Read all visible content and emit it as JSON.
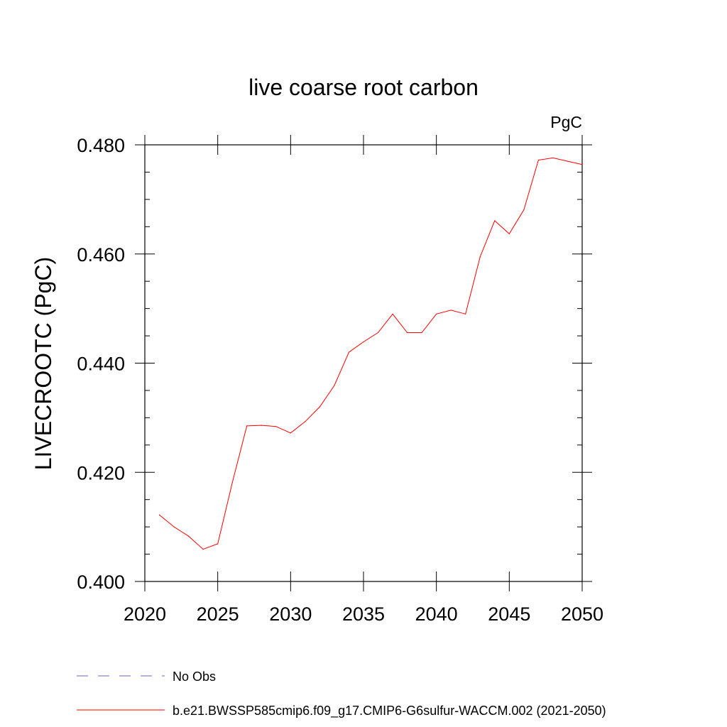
{
  "chart_data": {
    "type": "line",
    "title": "live coarse root carbon",
    "units": "PgC",
    "ylabel": "LIVECROOTC  (PgC)",
    "xlabel": "",
    "xlim": [
      2020,
      2050
    ],
    "ylim": [
      0.4,
      0.48
    ],
    "x_ticks": [
      "2020",
      "2025",
      "2030",
      "2035",
      "2040",
      "2045",
      "2050"
    ],
    "y_ticks": [
      "0.400",
      "0.420",
      "0.440",
      "0.460",
      "0.480"
    ],
    "grid": false,
    "legend_position": "bottom",
    "series": [
      {
        "name": "No Obs",
        "color": "#6666cc",
        "style": "dashed",
        "x": [],
        "values": []
      },
      {
        "name": "b.e21.BWSSP585cmip6.f09_g17.CMIP6-G6sulfur-WACCM.002 (2021-2050)",
        "color": "#ff0000",
        "style": "solid",
        "x": [
          2021,
          2022,
          2023,
          2024,
          2025,
          2026,
          2027,
          2028,
          2029,
          2030,
          2031,
          2032,
          2033,
          2034,
          2035,
          2036,
          2037,
          2038,
          2039,
          2040,
          2041,
          2042,
          2043,
          2044,
          2045,
          2046,
          2047,
          2048,
          2049,
          2050
        ],
        "values": [
          0.4122,
          0.41,
          0.4083,
          0.4059,
          0.4069,
          0.4181,
          0.4285,
          0.4286,
          0.4284,
          0.4272,
          0.4293,
          0.432,
          0.4359,
          0.442,
          0.4439,
          0.4456,
          0.449,
          0.4456,
          0.4456,
          0.449,
          0.4497,
          0.449,
          0.4595,
          0.4661,
          0.4637,
          0.4681,
          0.4772,
          0.4776,
          0.477,
          0.4764
        ]
      }
    ]
  }
}
